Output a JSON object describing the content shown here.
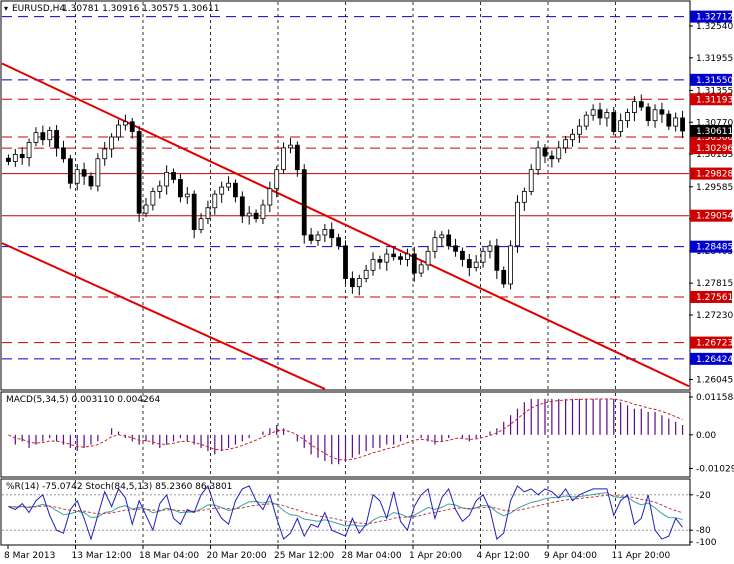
{
  "header": {
    "symbol_text": "EURUSD,H4",
    "ohlc_text": "1.30781 1.30916 1.30575 1.30611"
  },
  "indicators": {
    "macd_label": "MACD(5,34,5) 0.003110 0.004264",
    "wpr_stoch_label": "%R(14) -75.0742  Stoch(84,5,13) 85.2360 86.3801"
  },
  "colors": {
    "background": "#ffffff",
    "candle": "#000000",
    "trendline": "#e00000",
    "level_blue": "#0000cc",
    "level_red": "#cc0000",
    "macd_hist": "#5a0a8c",
    "macd_signal": "#d02020",
    "wpr_line": "#2020c0",
    "stoch_main": "#40a0a0",
    "stoch_signal": "#c04040",
    "highlight_blue_bg": "#0000cc",
    "highlight_red_bg": "#cc0000"
  },
  "chart_data": {
    "type": "candlestick",
    "symbol": "EURUSD",
    "timeframe": "H4",
    "y_ticks": [
      "1.32540",
      "1.31955",
      "1.31355",
      "1.30770",
      "1.30185",
      "1.29585",
      "1.29000",
      "1.28405",
      "1.27815",
      "1.27230",
      "1.26045"
    ],
    "ylim": [
      1.2587,
      1.3298
    ],
    "x_ticks": [
      "8 Mar 2013",
      "13 Mar 12:00",
      "18 Mar 04:00",
      "20 Mar 20:00",
      "25 Mar 12:00",
      "28 Mar 04:00",
      "1 Apr 20:00",
      "4 Apr 12:00",
      "9 Apr 04:00",
      "11 Apr 20:00"
    ],
    "price_levels": [
      {
        "value": 1.32712,
        "label": "1.32712",
        "color": "blue",
        "style": "dash"
      },
      {
        "value": 1.3155,
        "label": "1.31550",
        "color": "blue",
        "style": "dash"
      },
      {
        "value": 1.31193,
        "label": "1.31193",
        "color": "red",
        "style": "dash"
      },
      {
        "value": 1.305,
        "label": "1.30500",
        "color": "red",
        "style": "dash"
      },
      {
        "value": 1.30296,
        "label": "1.30296",
        "color": "red",
        "style": "dash"
      },
      {
        "value": 1.29828,
        "label": "1.29828",
        "color": "red",
        "style": "solid"
      },
      {
        "value": 1.29054,
        "label": "1.29054",
        "color": "red",
        "style": "solid"
      },
      {
        "value": 1.28485,
        "label": "1.28485",
        "color": "blue",
        "style": "dash"
      },
      {
        "value": 1.27561,
        "label": "1.27561",
        "color": "red",
        "style": "dash"
      },
      {
        "value": 1.26723,
        "label": "1.26723",
        "color": "red",
        "style": "dash"
      },
      {
        "value": 1.26424,
        "label": "1.26424",
        "color": "blue",
        "style": "dash"
      }
    ],
    "current_price": {
      "value": 1.30611,
      "label": "1.30611"
    },
    "trendlines": [
      {
        "from": [
          0,
          1.3185
        ],
        "to": [
          1,
          1.2592
        ],
        "unit": "x-fraction / price"
      },
      {
        "from": [
          0,
          1.2855
        ],
        "to": [
          0.47,
          1.2587
        ],
        "unit": "x-fraction / price"
      }
    ],
    "closes": [
      1.3005,
      1.3018,
      1.3012,
      1.304,
      1.3058,
      1.3045,
      1.3062,
      1.303,
      1.301,
      1.2965,
      1.299,
      1.2978,
      1.296,
      1.301,
      1.3028,
      1.305,
      1.3072,
      1.3078,
      1.306,
      1.291,
      1.2925,
      1.295,
      1.296,
      1.2985,
      1.2972,
      1.294,
      1.2945,
      1.288,
      1.29,
      1.292,
      1.2945,
      1.2958,
      1.2965,
      1.294,
      1.2905,
      1.291,
      1.29,
      1.2925,
      1.2955,
      1.299,
      1.303,
      1.3035,
      1.299,
      1.287,
      1.286,
      1.287,
      1.288,
      1.2865,
      1.285,
      1.279,
      1.2775,
      1.279,
      1.2805,
      1.2825,
      1.282,
      1.2835,
      1.283,
      1.2825,
      1.2835,
      1.28,
      1.2815,
      1.284,
      1.2865,
      1.287,
      1.285,
      1.284,
      1.2825,
      1.281,
      1.282,
      1.284,
      1.285,
      1.2805,
      1.278,
      1.285,
      1.293,
      1.295,
      1.299,
      1.303,
      1.3015,
      1.301,
      1.303,
      1.3045,
      1.3055,
      1.307,
      1.309,
      1.31,
      1.3085,
      1.3095,
      1.306,
      1.308,
      1.3095,
      1.3115,
      1.3105,
      1.308,
      1.31,
      1.3092,
      1.307,
      1.3085,
      1.3061
    ],
    "macd": {
      "label": "MACD(5,34,5)",
      "main": 0.00311,
      "signal": 0.004264,
      "ticks": [
        "0.011584",
        "0.00",
        "-0.010298"
      ],
      "ylim": [
        -0.0123,
        0.0125
      ],
      "hist": [
        0.0,
        -0.003,
        -0.002,
        -0.004,
        -0.003,
        -0.002,
        -0.001,
        -0.002,
        -0.003,
        -0.004,
        -0.005,
        -0.004,
        -0.003,
        -0.002,
        0.0,
        0.002,
        0.001,
        -0.001,
        -0.002,
        -0.003,
        -0.002,
        -0.003,
        -0.004,
        -0.003,
        -0.002,
        -0.001,
        -0.002,
        -0.003,
        -0.004,
        -0.005,
        -0.006,
        -0.005,
        -0.004,
        -0.003,
        -0.002,
        -0.001,
        0.0,
        0.001,
        0.002,
        0.003,
        0.002,
        0.0,
        -0.002,
        -0.004,
        -0.006,
        -0.007,
        -0.008,
        -0.009,
        -0.009,
        -0.008,
        -0.007,
        -0.006,
        -0.005,
        -0.004,
        -0.004,
        -0.003,
        -0.003,
        -0.002,
        -0.001,
        0.0,
        -0.001,
        -0.002,
        -0.003,
        -0.002,
        -0.001,
        0.0,
        -0.001,
        -0.002,
        -0.001,
        0.0,
        0.001,
        0.002,
        0.004,
        0.006,
        0.008,
        0.01,
        0.011,
        0.011,
        0.011,
        0.011,
        0.011,
        0.011,
        0.011,
        0.011,
        0.011,
        0.011,
        0.011,
        0.011,
        0.011,
        0.01,
        0.009,
        0.008,
        0.008,
        0.007,
        0.007,
        0.006,
        0.005,
        0.004,
        0.003
      ]
    },
    "wpr": {
      "label": "%R(14)",
      "value": -75.0742,
      "ticks": [
        "-20",
        "-80",
        "-100"
      ],
      "series": [
        -40,
        -45,
        -35,
        -50,
        -30,
        -20,
        -55,
        -80,
        -85,
        -45,
        -30,
        -60,
        -95,
        -55,
        -15,
        -40,
        -10,
        -25,
        -70,
        -30,
        -55,
        -80,
        -35,
        -20,
        -60,
        -70,
        -45,
        -50,
        -20,
        -5,
        -40,
        -60,
        -70,
        -30,
        -10,
        -5,
        -30,
        -45,
        -20,
        -60,
        -95,
        -85,
        -60,
        -90,
        -70,
        -75,
        -50,
        -80,
        -85,
        -90,
        -60,
        -85,
        -70,
        -20,
        -30,
        -60,
        -15,
        -65,
        -80,
        -40,
        -20,
        -10,
        -60,
        -25,
        -10,
        -45,
        -65,
        -55,
        -30,
        -20,
        -45,
        -95,
        -85,
        -30,
        -5,
        -15,
        -10,
        -20,
        -10,
        -15,
        -25,
        -10,
        -30,
        -20,
        -15,
        -10,
        -10,
        -10,
        -55,
        -30,
        -20,
        -70,
        -60,
        -20,
        -80,
        -95,
        -90,
        -60,
        -75
      ]
    },
    "stoch": {
      "label": "Stoch(84,5,13)",
      "main": 85.236,
      "signal": 86.3801
    }
  }
}
